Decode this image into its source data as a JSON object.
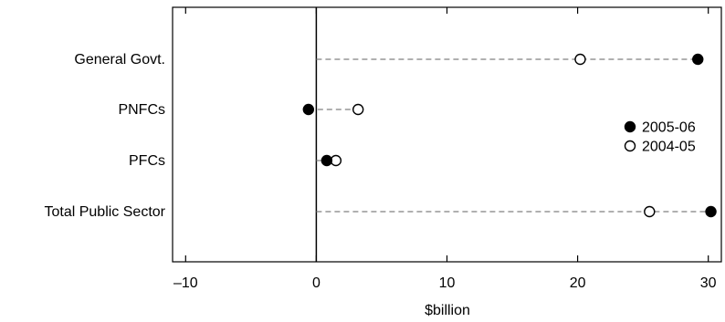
{
  "chart_data": {
    "type": "scatter",
    "subtype": "dot-plot",
    "categories": [
      "General Govt.",
      "PNFCs",
      "PFCs",
      "Total Public Sector"
    ],
    "series": [
      {
        "name": "2005-06",
        "marker": "filled-circle",
        "values": [
          29.2,
          -0.6,
          0.8,
          30.2
        ]
      },
      {
        "name": "2004-05",
        "marker": "open-circle",
        "values": [
          20.2,
          3.2,
          1.5,
          25.5
        ]
      }
    ],
    "xlabel": "$billion",
    "xlim": [
      -11,
      31
    ],
    "xticks": [
      -10,
      0,
      10,
      20,
      30
    ],
    "xtick_labels": [
      "–10",
      "0",
      "10",
      "20",
      "30"
    ],
    "reference_line": 0,
    "connector_style": "dashed",
    "legend_position": "center-right",
    "grid": false,
    "colors": {
      "marker": "#000000",
      "connector": "#808080",
      "axis": "#000000"
    }
  }
}
